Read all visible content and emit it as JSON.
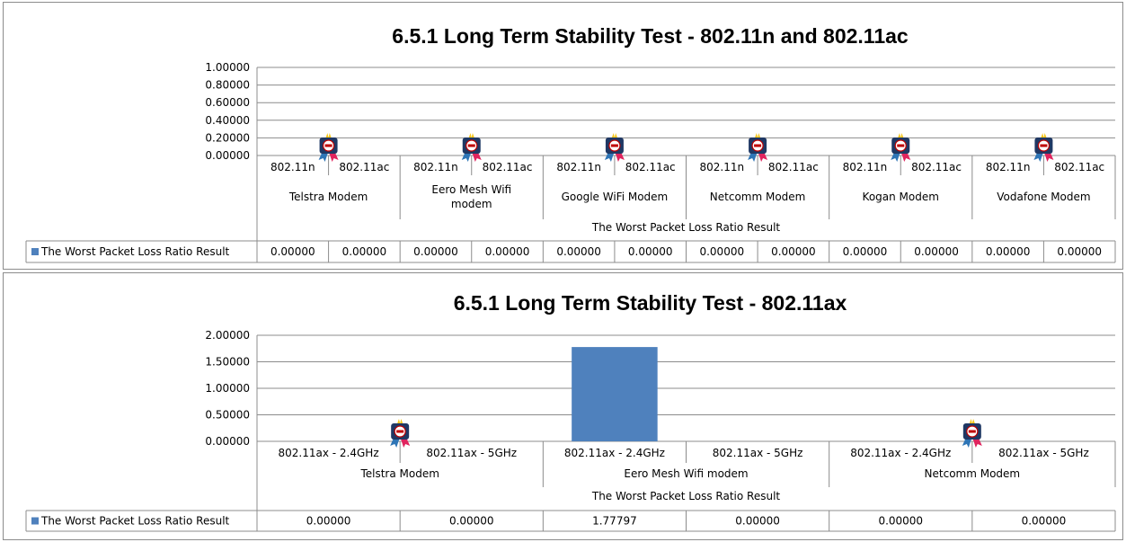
{
  "charts": [
    {
      "chart_data": {
        "type": "bar",
        "title": "6.5.1 Long Term Stability Test - 802.11n and 802.11ac",
        "ylim": [
          0,
          1
        ],
        "yticks": [
          "1.00000",
          "0.80000",
          "0.60000",
          "0.40000",
          "0.20000",
          "0.00000"
        ],
        "grid": true,
        "groups": [
          "Telstra Modem",
          "Eero Mesh Wifi modem",
          "Google WiFi Modem",
          "Netcomm Modem",
          "Kogan Modem",
          "Vodafone Modem"
        ],
        "categories": [
          "802.11n",
          "802.11ac",
          "802.11n",
          "802.11ac",
          "802.11n",
          "802.11ac",
          "802.11n",
          "802.11ac",
          "802.11n",
          "802.11ac",
          "802.11n",
          "802.11ac"
        ],
        "super_category": "The Worst Packet Loss Ratio Result",
        "series": [
          {
            "name": "The Worst Packet Loss Ratio Result",
            "color": "#4f81bd",
            "values": [
              0,
              0,
              0,
              0,
              0,
              0,
              0,
              0,
              0,
              0,
              0,
              0
            ],
            "labels": [
              "0.00000",
              "0.00000",
              "0.00000",
              "0.00000",
              "0.00000",
              "0.00000",
              "0.00000",
              "0.00000",
              "0.00000",
              "0.00000",
              "0.00000",
              "0.00000"
            ]
          }
        ],
        "best_badge_groups": [
          0,
          1,
          2,
          3,
          4,
          5
        ],
        "legend": "data-table"
      }
    },
    {
      "chart_data": {
        "type": "bar",
        "title": "6.5.1 Long Term Stability Test - 802.11ax",
        "ylim": [
          0,
          2
        ],
        "yticks": [
          "2.00000",
          "1.50000",
          "1.00000",
          "0.50000",
          "0.00000"
        ],
        "grid": true,
        "groups": [
          "Telstra Modem",
          "Eero Mesh Wifi modem",
          "Netcomm Modem"
        ],
        "categories": [
          "802.11ax - 2.4GHz",
          "802.11ax - 5GHz",
          "802.11ax - 2.4GHz",
          "802.11ax - 5GHz",
          "802.11ax - 2.4GHz",
          "802.11ax - 5GHz"
        ],
        "super_category": "The Worst Packet Loss Ratio Result",
        "series": [
          {
            "name": "The Worst Packet Loss Ratio Result",
            "color": "#4f81bd",
            "values": [
              0,
              0,
              1.77797,
              0,
              0,
              0
            ],
            "labels": [
              "0.00000",
              "0.00000",
              "1.77797",
              "0.00000",
              "0.00000",
              "0.00000"
            ]
          }
        ],
        "best_badge_groups": [
          0,
          2
        ],
        "legend": "data-table"
      }
    }
  ]
}
